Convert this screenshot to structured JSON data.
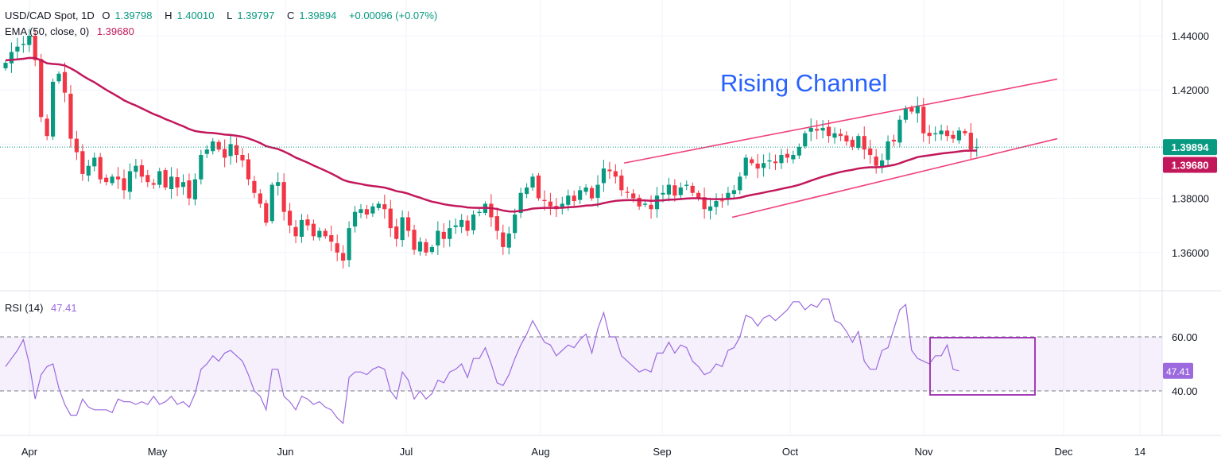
{
  "header": {
    "symbol": "USD/CAD Spot, 1D",
    "o_label": "O",
    "o": "1.39798",
    "h_label": "H",
    "h": "1.40010",
    "l_label": "L",
    "l": "1.39797",
    "c_label": "C",
    "c": "1.39894",
    "change": "+0.00096 (+0.07%)",
    "ema_label": "EMA (50, close, 0)",
    "ema_value": "1.39680"
  },
  "rsi_legend": {
    "label": "RSI (14)",
    "value": "47.41"
  },
  "annotation": "Rising Channel",
  "colors": {
    "up": "#089981",
    "down": "#f23645",
    "ema": "#c2185b",
    "channel": "#f0417a",
    "rsi": "#9c6ade",
    "annotation": "#2962ff",
    "box": "#9c27b0"
  },
  "chart_data": [
    {
      "type": "candlestick",
      "x_labels": [
        "Apr",
        "May",
        "Jun",
        "Jul",
        "Aug",
        "Sep",
        "Oct",
        "Nov",
        "Dec",
        "14"
      ],
      "y_ticks": [
        "1.44000",
        "1.42000",
        "1.38000",
        "1.36000"
      ],
      "ylim": [
        1.345,
        1.45
      ],
      "last_price": "1.39894",
      "ema_label": "1.39680",
      "closes": [
        1.43,
        1.434,
        1.436,
        1.437,
        1.44,
        1.431,
        1.41,
        1.403,
        1.423,
        1.426,
        1.419,
        1.402,
        1.397,
        1.389,
        1.392,
        1.395,
        1.387,
        1.386,
        1.388,
        1.387,
        1.383,
        1.39,
        1.392,
        1.388,
        1.386,
        1.385,
        1.39,
        1.384,
        1.388,
        1.384,
        1.386,
        1.38,
        1.387,
        1.396,
        1.398,
        1.401,
        1.398,
        1.395,
        1.4,
        1.396,
        1.394,
        1.387,
        1.382,
        1.378,
        1.371,
        1.385,
        1.386,
        1.375,
        1.37,
        1.366,
        1.372,
        1.37,
        1.366,
        1.368,
        1.366,
        1.364,
        1.36,
        1.357,
        1.369,
        1.375,
        1.376,
        1.374,
        1.377,
        1.378,
        1.376,
        1.369,
        1.365,
        1.373,
        1.368,
        1.361,
        1.364,
        1.36,
        1.362,
        1.368,
        1.365,
        1.369,
        1.37,
        1.372,
        1.368,
        1.374,
        1.375,
        1.378,
        1.373,
        1.368,
        1.362,
        1.367,
        1.374,
        1.382,
        1.384,
        1.388,
        1.38,
        1.379,
        1.377,
        1.376,
        1.378,
        1.381,
        1.379,
        1.383,
        1.384,
        1.38,
        1.385,
        1.391,
        1.39,
        1.388,
        1.383,
        1.382,
        1.38,
        1.377,
        1.378,
        1.376,
        1.381,
        1.382,
        1.385,
        1.381,
        1.384,
        1.385,
        1.382,
        1.38,
        1.376,
        1.377,
        1.379,
        1.379,
        1.382,
        1.383,
        1.388,
        1.395,
        1.393,
        1.391,
        1.393,
        1.394,
        1.393,
        1.396,
        1.395,
        1.396,
        1.399,
        1.404,
        1.406,
        1.405,
        1.406,
        1.403,
        1.404,
        1.403,
        1.401,
        1.399,
        1.403,
        1.398,
        1.396,
        1.392,
        1.394,
        1.401,
        1.401,
        1.409,
        1.413,
        1.412,
        1.414,
        1.404,
        1.403,
        1.404,
        1.405,
        1.403,
        1.402,
        1.405,
        1.404,
        1.398,
        1.3989
      ],
      "ema50_end": "1.39680",
      "channel": {
        "upper": [
          [
            1.393,
            1.424
          ]
        ],
        "lower": [
          [
            1.373,
            1.402
          ]
        ]
      },
      "grid": true
    },
    {
      "type": "line",
      "name": "RSI (14)",
      "y_ticks": [
        "60.00",
        "40.00"
      ],
      "ylim": [
        28,
        78
      ],
      "last_value": "47.41",
      "values": [
        49,
        52,
        55,
        59,
        50,
        37,
        46,
        49,
        50,
        41,
        35,
        31,
        31,
        37,
        34,
        33,
        33,
        33,
        32,
        37,
        36,
        36,
        35,
        36,
        35,
        38,
        35,
        36,
        38,
        35,
        36,
        34,
        39,
        48,
        50,
        53,
        51,
        54,
        55,
        53,
        51,
        46,
        40,
        38,
        33,
        48,
        48,
        38,
        36,
        33,
        38,
        37,
        35,
        36,
        34,
        33,
        30,
        28,
        45,
        47,
        47,
        46,
        48,
        49,
        48,
        40,
        37,
        47,
        44,
        37,
        40,
        37,
        39,
        44,
        43,
        47,
        48,
        50,
        45,
        52,
        52,
        56,
        50,
        43,
        42,
        46,
        52,
        57,
        61,
        66,
        62,
        58,
        57,
        53,
        55,
        57,
        56,
        59,
        61,
        54,
        63,
        69,
        60,
        60,
        53,
        51,
        49,
        47,
        48,
        47,
        54,
        54,
        58,
        54,
        57,
        56,
        51,
        49,
        46,
        47,
        50,
        49,
        55,
        56,
        60,
        68,
        67,
        64,
        67,
        68,
        66,
        68,
        70,
        73,
        73,
        70,
        72,
        71,
        74,
        74,
        66,
        65,
        62,
        58,
        62,
        51,
        48,
        48,
        55,
        56,
        63,
        70,
        72,
        55,
        52,
        51,
        50,
        53,
        53,
        57,
        48,
        47.41
      ],
      "reference_lines": [
        60,
        40
      ],
      "grid": true
    }
  ]
}
